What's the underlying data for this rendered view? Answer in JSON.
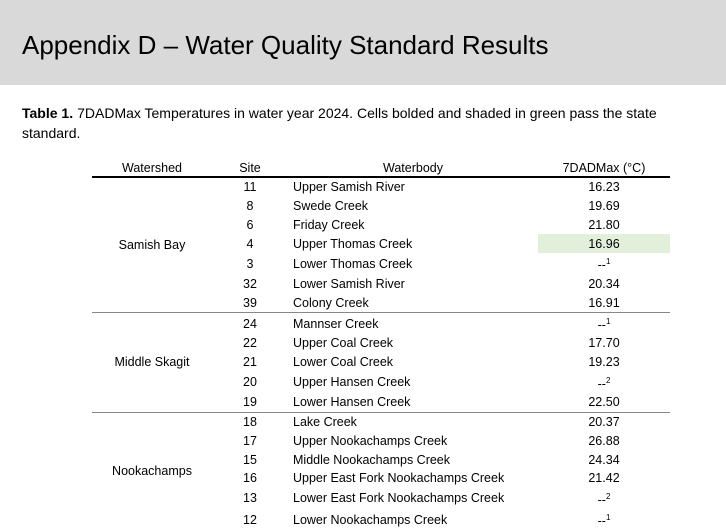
{
  "header": {
    "title": "Appendix D – Water Quality Standard Results"
  },
  "caption": {
    "label": "Table 1.",
    "text": "7DADMax Temperatures in water year 2024. Cells bolded and shaded in green pass the state standard."
  },
  "table": {
    "columns": [
      "Watershed",
      "Site",
      "Waterbody",
      "7DADMax (°C)"
    ],
    "groups": [
      {
        "watershed": "Samish Bay",
        "rows": [
          {
            "site": 11,
            "waterbody": "Upper Samish River",
            "value": "16.23"
          },
          {
            "site": 8,
            "waterbody": "Swede Creek",
            "value": "19.69"
          },
          {
            "site": 6,
            "waterbody": "Friday Creek",
            "value": "21.80"
          },
          {
            "site": 4,
            "waterbody": "Upper Thomas Creek",
            "value": "16.96",
            "pass": true
          },
          {
            "site": 3,
            "waterbody": "Lower Thomas Creek",
            "value": "--",
            "note": "1"
          },
          {
            "site": 32,
            "waterbody": "Lower Samish River",
            "value": "20.34"
          },
          {
            "site": 39,
            "waterbody": "Colony Creek",
            "value": "16.91"
          }
        ]
      },
      {
        "watershed": "Middle Skagit",
        "rows": [
          {
            "site": 24,
            "waterbody": "Mannser Creek",
            "value": "--",
            "note": "1"
          },
          {
            "site": 22,
            "waterbody": "Upper Coal Creek",
            "value": "17.70"
          },
          {
            "site": 21,
            "waterbody": "Lower Coal Creek",
            "value": "19.23"
          },
          {
            "site": 20,
            "waterbody": "Upper Hansen Creek",
            "value": "--",
            "note": "2"
          },
          {
            "site": 19,
            "waterbody": "Lower Hansen Creek",
            "value": "22.50"
          }
        ]
      },
      {
        "watershed": "Nookachamps",
        "rows": [
          {
            "site": 18,
            "waterbody": "Lake Creek",
            "value": "20.37"
          },
          {
            "site": 17,
            "waterbody": "Upper Nookachamps Creek",
            "value": "26.88"
          },
          {
            "site": 15,
            "waterbody": "Middle Nookachamps Creek",
            "value": "24.34"
          },
          {
            "site": 16,
            "waterbody": "Upper East Fork Nookachamps Creek",
            "value": "21.42"
          },
          {
            "site": 13,
            "waterbody": "Lower East Fork Nookachamps Creek",
            "value": "--",
            "note": "2"
          },
          {
            "site": 12,
            "waterbody": "Lower Nookachamps Creek",
            "value": "--",
            "note": "1"
          }
        ]
      }
    ]
  }
}
